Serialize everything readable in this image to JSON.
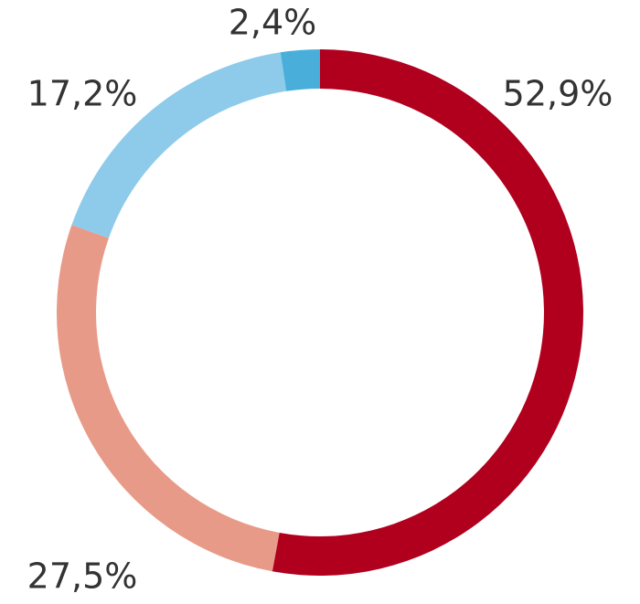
{
  "chart_data": {
    "type": "donut",
    "values": [
      52.9,
      27.5,
      17.2,
      2.4
    ],
    "value_labels": [
      "52,9%",
      "27,5%",
      "17,2%",
      "2,4%"
    ],
    "colors": [
      "#b0001e",
      "#e89a88",
      "#8ecbea",
      "#4aaedb"
    ]
  }
}
